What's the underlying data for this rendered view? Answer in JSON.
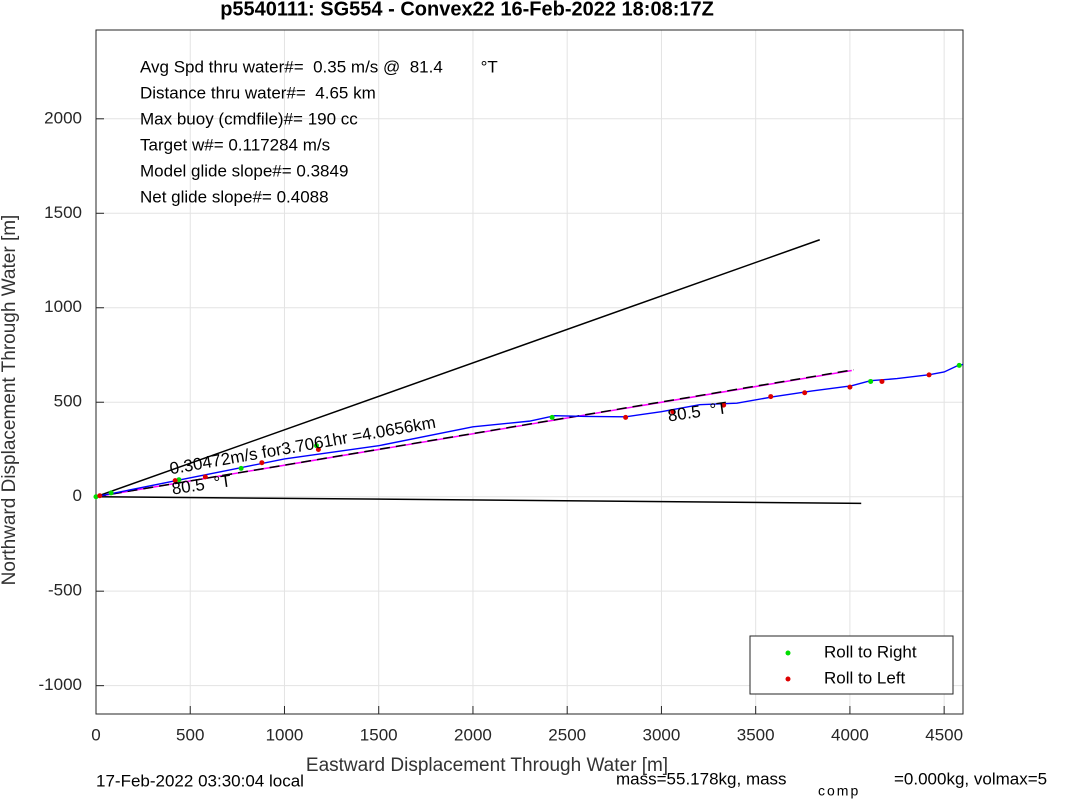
{
  "chart_data": {
    "type": "line",
    "title": "p5540111: SG554 - Convex22 16-Feb-2022 18:08:17Z",
    "x_label": "Eastward Displacement Through Water [m]",
    "y_label": "Northward Displacement Through Water [m]",
    "xlim": [
      0,
      4600
    ],
    "ylim": [
      -1150,
      2470
    ],
    "xticks": [
      0,
      500,
      1000,
      1500,
      2000,
      2500,
      3000,
      3500,
      4000,
      4500
    ],
    "yticks": [
      -1000,
      -500,
      0,
      500,
      1000,
      1500,
      2000
    ],
    "grid": true,
    "stats": [
      "Avg Spd thru water#=  0.35 m/s @  81.4        °T",
      "Distance thru water#=  4.65 km",
      "Max buoy (cmdfile)#= 190 cc",
      "Target w#= 0.117284 m/s",
      "Model glide slope#= 0.3849",
      "Net glide slope#= 0.4088"
    ],
    "annotations": [
      "0.30472m/s for3.7061hr =4.0656km",
      "80.5  °T",
      "80.5  °T"
    ],
    "footer": [
      "17-Feb-2022 03:30:04 local",
      "mass=55.178kg, mass",
      "comp",
      "=0.000kg, volmax=5"
    ],
    "lines": [
      {
        "color": "#000000",
        "dash": false,
        "x": [
          0,
          3840
        ],
        "y": [
          0,
          1360
        ]
      },
      {
        "color": "#000000",
        "dash": false,
        "x": [
          0,
          4060
        ],
        "y": [
          0,
          -35
        ]
      },
      {
        "color": "#ff00ff",
        "dash": false,
        "x": [
          0,
          4010
        ],
        "y": [
          0,
          668
        ]
      },
      {
        "color": "#000000",
        "dash": true,
        "x": [
          0,
          4020
        ],
        "y": [
          0,
          672
        ]
      },
      {
        "color": "#0000ff",
        "dash": false,
        "x": [
          0,
          100,
          400,
          700,
          1000,
          1500,
          2000,
          2300,
          2434,
          2600,
          2810,
          3000,
          3203,
          3400,
          3600,
          3800,
          4008,
          4109,
          4250,
          4422,
          4500,
          4570,
          4600
        ],
        "y": [
          0,
          20,
          80,
          140,
          200,
          270,
          370,
          400,
          429,
          425,
          423,
          450,
          487,
          495,
          530,
          560,
          587,
          614,
          625,
          646,
          660,
          693,
          700
        ]
      }
    ],
    "legend_position": "southeast",
    "series": [
      {
        "name": "Roll to Right",
        "color": "#00dd00",
        "x": [
          0,
          80,
          440,
          770,
          1170,
          2420,
          4110,
          4580
        ],
        "values": [
          0,
          20,
          90,
          150,
          270,
          420,
          610,
          695
        ]
      },
      {
        "name": "Roll to Left",
        "color": "#dd0000",
        "x": [
          20,
          420,
          580,
          880,
          1180,
          2810,
          3060,
          3330,
          3580,
          3760,
          4000,
          4170,
          4420
        ],
        "values": [
          5,
          85,
          105,
          180,
          250,
          420,
          450,
          485,
          530,
          550,
          580,
          610,
          645
        ]
      }
    ]
  }
}
